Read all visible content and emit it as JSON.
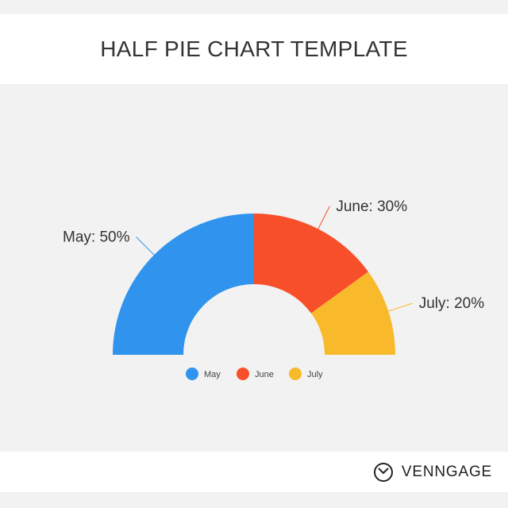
{
  "header": {
    "title": "HALF PIE CHART TEMPLATE"
  },
  "chart_data": {
    "type": "pie",
    "variant": "half-donut",
    "title": "HALF PIE CHART TEMPLATE",
    "categories": [
      "May",
      "June",
      "July"
    ],
    "values": [
      50,
      30,
      20
    ],
    "unit": "%",
    "data_labels": [
      "May: 50%",
      "June: 30%",
      "July: 20%"
    ],
    "colors": [
      "#3094ee",
      "#f84f2b",
      "#f8b92b"
    ],
    "legend": {
      "position": "bottom",
      "entries": [
        "May",
        "June",
        "July"
      ]
    }
  },
  "footer": {
    "brand": "VENNGAGE",
    "brand_icon": "venngage-logo-icon"
  }
}
